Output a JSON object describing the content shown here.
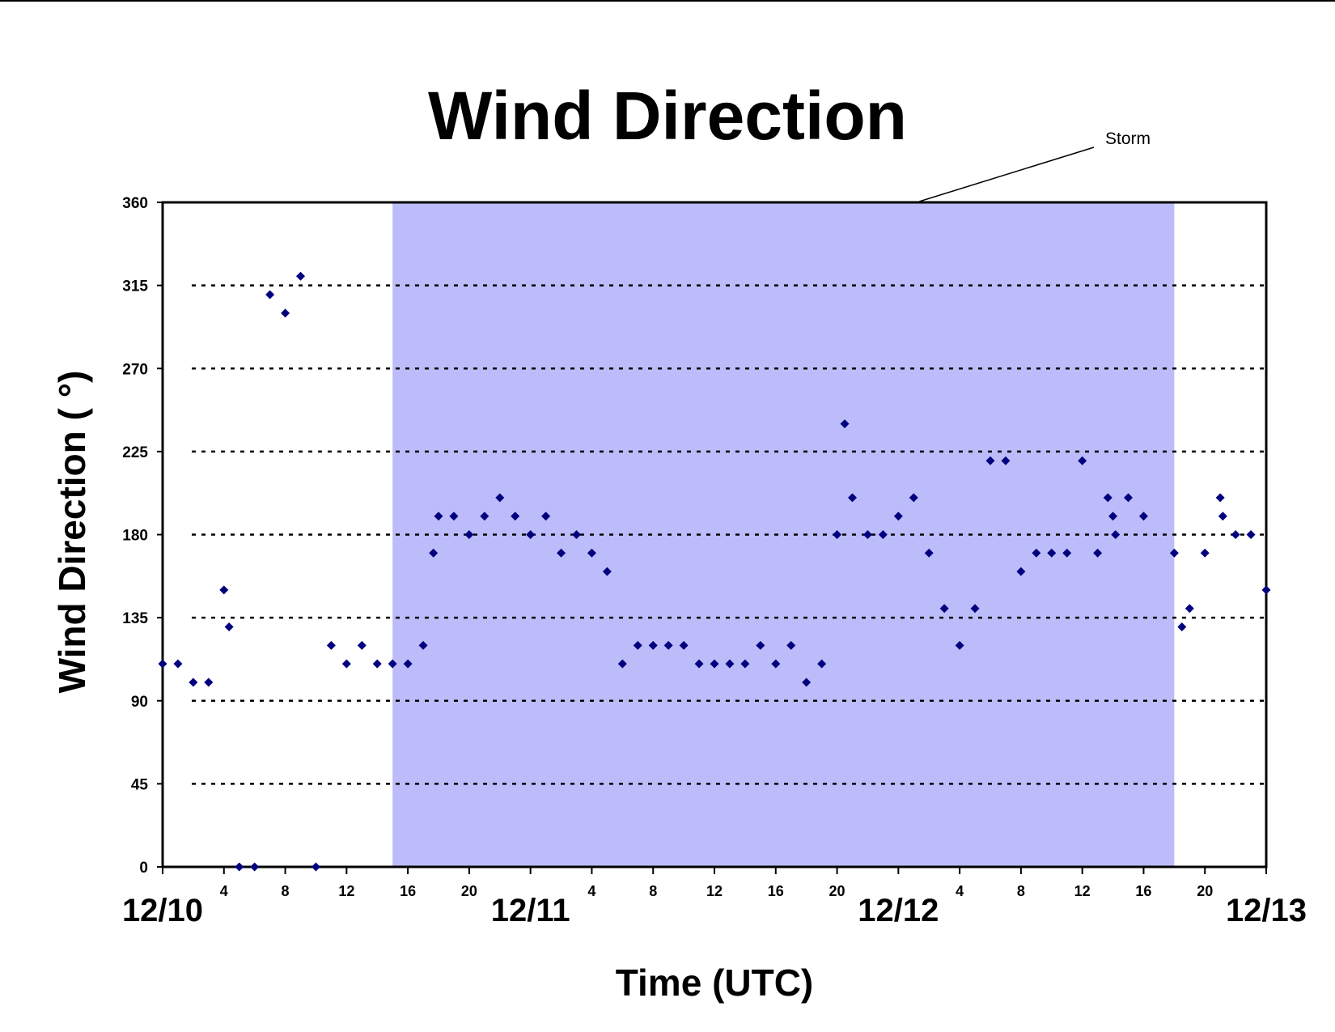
{
  "chart_data": {
    "type": "scatter",
    "title": "Wind Direction",
    "xlabel": "Time (UTC)",
    "ylabel": "Wind Direction ( °)",
    "ylim": [
      0,
      360
    ],
    "yticks": [
      0,
      45,
      90,
      135,
      180,
      225,
      270,
      315,
      360
    ],
    "grid": "horizontal dotted",
    "xlim_hours_from_12_10_00": [
      0,
      72
    ],
    "date_labels": [
      "12/10",
      "12/11",
      "12/12",
      "12/13"
    ],
    "hour_tick_labels": [
      "4",
      "8",
      "12",
      "16",
      "20"
    ],
    "shaded_region": {
      "label": "Storm",
      "start": "12/10 15:00",
      "end": "12/12 18:00",
      "color": "#bcbcfb"
    },
    "marker_color": "#00007f",
    "series": [
      {
        "points": [
          [
            "12/10 00:00",
            110
          ],
          [
            "12/10 01:00",
            110
          ],
          [
            "12/10 02:00",
            100
          ],
          [
            "12/10 03:00",
            100
          ],
          [
            "12/10 04:00",
            150
          ],
          [
            "12/10 04:20",
            130
          ],
          [
            "12/10 05:00",
            0
          ],
          [
            "12/10 06:00",
            0
          ],
          [
            "12/10 07:00",
            310
          ],
          [
            "12/10 08:00",
            300
          ],
          [
            "12/10 09:00",
            320
          ],
          [
            "12/10 10:00",
            0
          ],
          [
            "12/10 11:00",
            120
          ],
          [
            "12/10 12:00",
            110
          ],
          [
            "12/10 13:00",
            120
          ],
          [
            "12/10 14:00",
            110
          ],
          [
            "12/10 15:00",
            110
          ],
          [
            "12/10 16:00",
            110
          ],
          [
            "12/10 17:00",
            120
          ],
          [
            "12/10 17:40",
            170
          ],
          [
            "12/10 18:00",
            190
          ],
          [
            "12/10 19:00",
            190
          ],
          [
            "12/10 20:00",
            180
          ],
          [
            "12/10 21:00",
            190
          ],
          [
            "12/10 22:00",
            200
          ],
          [
            "12/10 23:00",
            190
          ],
          [
            "12/11 00:00",
            180
          ],
          [
            "12/11 01:00",
            190
          ],
          [
            "12/11 02:00",
            170
          ],
          [
            "12/11 03:00",
            180
          ],
          [
            "12/11 04:00",
            170
          ],
          [
            "12/11 05:00",
            160
          ],
          [
            "12/11 06:00",
            110
          ],
          [
            "12/11 07:00",
            120
          ],
          [
            "12/11 08:00",
            120
          ],
          [
            "12/11 09:00",
            120
          ],
          [
            "12/11 10:00",
            120
          ],
          [
            "12/11 11:00",
            110
          ],
          [
            "12/11 12:00",
            110
          ],
          [
            "12/11 13:00",
            110
          ],
          [
            "12/11 14:00",
            110
          ],
          [
            "12/11 15:00",
            120
          ],
          [
            "12/11 16:00",
            110
          ],
          [
            "12/11 17:00",
            120
          ],
          [
            "12/11 18:00",
            100
          ],
          [
            "12/11 19:00",
            110
          ],
          [
            "12/11 20:00",
            180
          ],
          [
            "12/11 20:30",
            240
          ],
          [
            "12/11 21:00",
            200
          ],
          [
            "12/11 22:00",
            180
          ],
          [
            "12/11 23:00",
            180
          ],
          [
            "12/12 00:00",
            190
          ],
          [
            "12/12 01:00",
            200
          ],
          [
            "12/12 02:00",
            170
          ],
          [
            "12/12 03:00",
            140
          ],
          [
            "12/12 04:00",
            120
          ],
          [
            "12/12 05:00",
            140
          ],
          [
            "12/12 06:00",
            220
          ],
          [
            "12/12 07:00",
            220
          ],
          [
            "12/12 08:00",
            160
          ],
          [
            "12/12 09:00",
            170
          ],
          [
            "12/12 10:00",
            170
          ],
          [
            "12/12 11:00",
            170
          ],
          [
            "12/12 12:00",
            220
          ],
          [
            "12/12 13:00",
            170
          ],
          [
            "12/12 13:40",
            200
          ],
          [
            "12/12 14:00",
            190
          ],
          [
            "12/12 14:10",
            180
          ],
          [
            "12/12 15:00",
            200
          ],
          [
            "12/12 16:00",
            190
          ],
          [
            "12/12 18:00",
            170
          ],
          [
            "12/12 18:30",
            130
          ],
          [
            "12/12 19:00",
            140
          ],
          [
            "12/12 20:00",
            170
          ],
          [
            "12/12 21:00",
            200
          ],
          [
            "12/12 21:10",
            190
          ],
          [
            "12/12 22:00",
            180
          ],
          [
            "12/12 23:00",
            180
          ],
          [
            "12/13 00:00",
            150
          ]
        ]
      }
    ]
  }
}
